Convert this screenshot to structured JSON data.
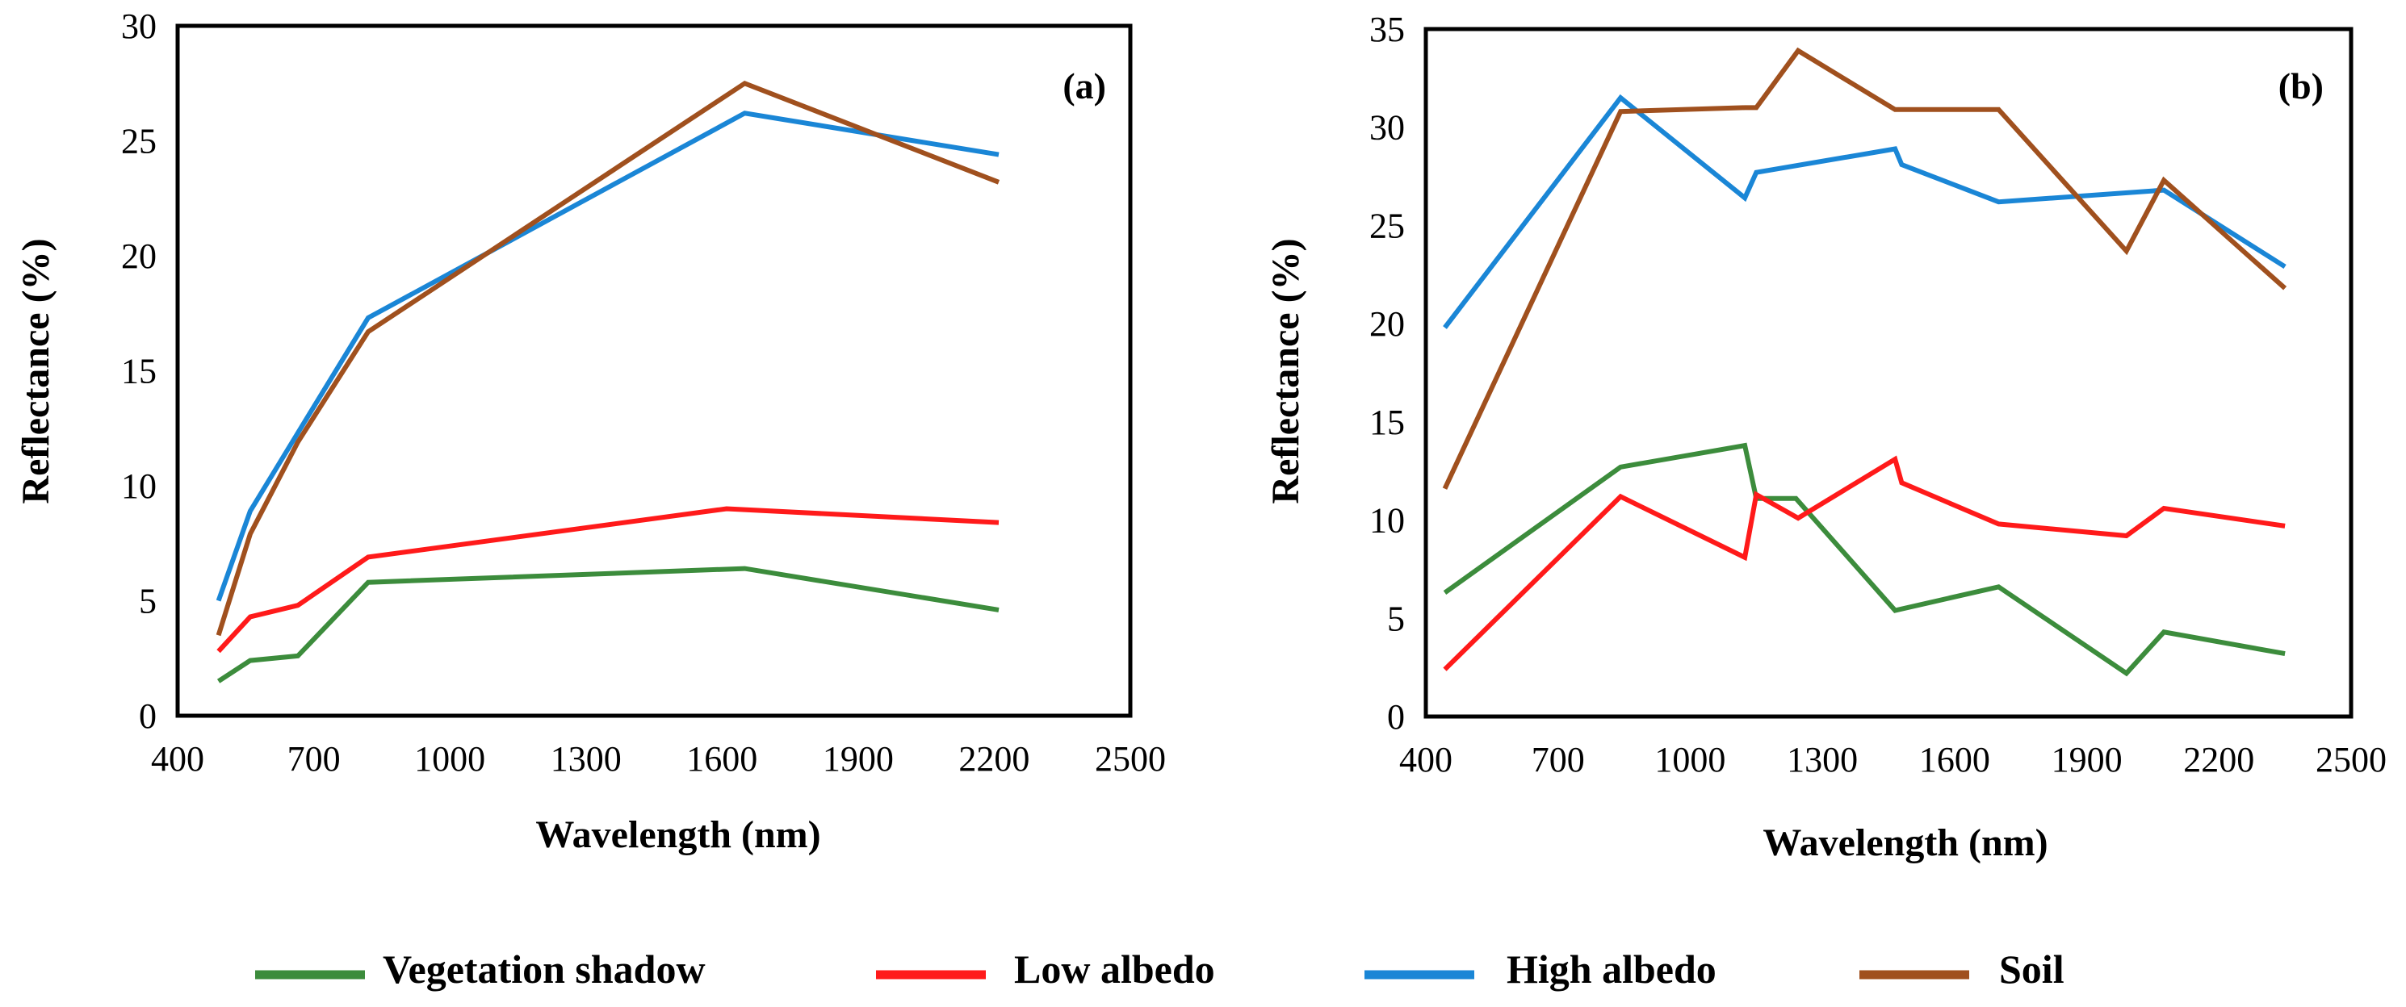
{
  "chart_data": [
    {
      "type": "line",
      "panel_label": "(a)",
      "xlabel": "Wavelength (nm)",
      "ylabel": "Reflectance (%)",
      "xlim": [
        400,
        2500
      ],
      "ylim": [
        0,
        30
      ],
      "xticks": [
        400,
        700,
        1000,
        1300,
        1600,
        1900,
        2200,
        2500
      ],
      "yticks": [
        0,
        5,
        10,
        15,
        20,
        25,
        30
      ],
      "series": [
        {
          "name": "Vegetation shadow",
          "color": "#3c8c3c",
          "x": [
            490,
            560,
            665,
            820,
            1650,
            2210
          ],
          "y": [
            1.5,
            2.4,
            2.6,
            5.8,
            6.4,
            4.6
          ]
        },
        {
          "name": "Low albedo",
          "color": "#ff1a1a",
          "x": [
            490,
            560,
            665,
            820,
            1610,
            2210
          ],
          "y": [
            2.8,
            4.3,
            4.8,
            6.9,
            9.0,
            8.4
          ]
        },
        {
          "name": "High albedo",
          "color": "#1a86d6",
          "x": [
            490,
            560,
            665,
            820,
            1650,
            2210
          ],
          "y": [
            5.0,
            8.9,
            12.3,
            17.3,
            26.2,
            24.4
          ]
        },
        {
          "name": "Soil",
          "color": "#a0501e",
          "x": [
            490,
            560,
            665,
            820,
            1650,
            2210
          ],
          "y": [
            3.5,
            7.9,
            11.9,
            16.7,
            27.5,
            23.2
          ]
        }
      ]
    },
    {
      "type": "line",
      "panel_label": "(b)",
      "xlabel": "Wavelength (nm)",
      "ylabel": "Reflectance (%)",
      "xlim": [
        400,
        2500
      ],
      "ylim": [
        0,
        35
      ],
      "xticks": [
        400,
        700,
        1000,
        1300,
        1600,
        1900,
        2200,
        2500
      ],
      "yticks": [
        0,
        5,
        10,
        15,
        20,
        25,
        30,
        35
      ],
      "series": [
        {
          "name": "Vegetation shadow",
          "color": "#3c8c3c",
          "x": [
            443,
            842,
            1124,
            1150,
            1240,
            1465,
            1700,
            1990,
            2075,
            2350
          ],
          "y": [
            6.3,
            12.7,
            13.8,
            11.1,
            11.1,
            5.4,
            6.6,
            2.2,
            4.3,
            3.2
          ]
        },
        {
          "name": "Low albedo",
          "color": "#ff1a1a",
          "x": [
            443,
            842,
            1124,
            1150,
            1245,
            1465,
            1480,
            1700,
            1990,
            2075,
            2350
          ],
          "y": [
            2.4,
            11.2,
            8.1,
            11.3,
            10.1,
            13.1,
            11.9,
            9.8,
            9.2,
            10.6,
            9.7
          ]
        },
        {
          "name": "High albedo",
          "color": "#1a86d6",
          "x": [
            443,
            842,
            1124,
            1150,
            1465,
            1480,
            1700,
            2075,
            2350
          ],
          "y": [
            19.8,
            31.5,
            26.4,
            27.7,
            28.9,
            28.1,
            26.2,
            26.8,
            22.9
          ]
        },
        {
          "name": "Soil",
          "color": "#a0501e",
          "x": [
            443,
            842,
            1124,
            1150,
            1245,
            1465,
            1700,
            1990,
            2075,
            2350
          ],
          "y": [
            11.6,
            30.8,
            31.0,
            31.0,
            33.9,
            30.9,
            30.9,
            23.7,
            27.3,
            21.8
          ]
        }
      ]
    }
  ],
  "legend": {
    "placement": "bottom-center",
    "items": [
      {
        "name": "Vegetation shadow",
        "color": "#3c8c3c"
      },
      {
        "name": "Low albedo",
        "color": "#ff1a1a"
      },
      {
        "name": "High albedo",
        "color": "#1a86d6"
      },
      {
        "name": "Soil",
        "color": "#a0501e"
      }
    ]
  }
}
